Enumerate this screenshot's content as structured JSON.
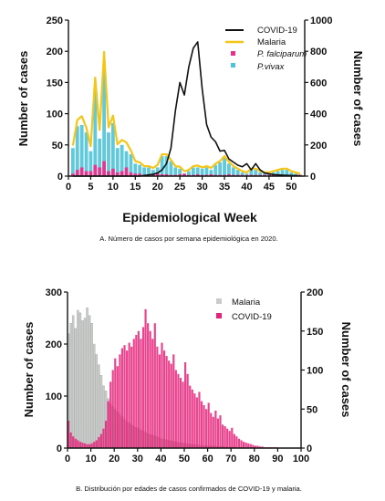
{
  "chart_data": [
    {
      "type": "bar",
      "caption": "A. Número de casos por semana epidemiológica en 2020.",
      "xlabel": "Epidemiological Week",
      "ylabel": "Number of cases",
      "ylabel_right": "Number of cases",
      "xlim": [
        0,
        53
      ],
      "ylim": [
        0,
        250
      ],
      "ylim_right": [
        0,
        1000
      ],
      "xticks": [
        0,
        5,
        10,
        15,
        20,
        25,
        30,
        35,
        40,
        45,
        50
      ],
      "yticks": [
        0,
        50,
        100,
        150,
        200,
        250
      ],
      "yticks_right": [
        0,
        200,
        400,
        600,
        800,
        1000
      ],
      "legend_position": "top-right",
      "weeks": [
        1,
        2,
        3,
        4,
        5,
        6,
        7,
        8,
        9,
        10,
        11,
        12,
        13,
        14,
        15,
        16,
        17,
        18,
        19,
        20,
        21,
        22,
        23,
        24,
        25,
        26,
        27,
        28,
        29,
        30,
        31,
        32,
        33,
        34,
        35,
        36,
        37,
        38,
        39,
        40,
        41,
        42,
        43,
        44,
        45,
        46,
        47,
        48,
        49,
        50,
        51,
        52
      ],
      "series": [
        {
          "name": "P. falciparum",
          "axis": "left",
          "color": "#e8318a",
          "values": [
            4,
            10,
            14,
            8,
            8,
            18,
            14,
            24,
            8,
            12,
            6,
            8,
            14,
            6,
            4,
            4,
            2,
            2,
            3,
            4,
            3,
            3,
            2,
            2,
            3,
            4,
            2,
            2,
            3,
            2,
            2,
            3,
            2,
            2,
            2,
            3,
            2,
            2,
            2,
            2,
            2,
            2,
            2,
            2,
            2,
            2,
            2,
            2,
            2,
            2,
            2,
            2
          ]
        },
        {
          "name": "P.vivax",
          "axis": "left",
          "color": "#4fc3d8",
          "values": [
            45,
            80,
            82,
            70,
            40,
            140,
            60,
            175,
            70,
            85,
            45,
            50,
            40,
            35,
            20,
            18,
            14,
            14,
            10,
            14,
            32,
            32,
            24,
            14,
            12,
            4,
            8,
            14,
            14,
            12,
            14,
            10,
            18,
            22,
            30,
            20,
            14,
            10,
            6,
            4,
            10,
            10,
            6,
            4,
            4,
            6,
            8,
            10,
            10,
            6,
            4,
            2
          ]
        },
        {
          "name": "Malaria",
          "axis": "left",
          "color": "#f5c518",
          "values": [
            49,
            90,
            96,
            78,
            48,
            158,
            74,
            199,
            78,
            97,
            51,
            58,
            54,
            41,
            24,
            22,
            16,
            16,
            13,
            18,
            35,
            35,
            26,
            16,
            15,
            8,
            10,
            16,
            17,
            14,
            16,
            13,
            20,
            24,
            32,
            23,
            16,
            12,
            8,
            6,
            12,
            12,
            8,
            6,
            6,
            8,
            10,
            12,
            12,
            8,
            6,
            4
          ]
        },
        {
          "name": "COVID-19",
          "axis": "right",
          "color": "#111111",
          "weeks": [
            1,
            16,
            17,
            18,
            19,
            20,
            21,
            22,
            23,
            24,
            25,
            26,
            27,
            28,
            29,
            30,
            31,
            32,
            33,
            34,
            35,
            36,
            37,
            38,
            39,
            40,
            41,
            42,
            43,
            44,
            45,
            46,
            47,
            48,
            49,
            50,
            51,
            52
          ],
          "values": [
            0,
            0,
            4,
            8,
            12,
            20,
            40,
            80,
            180,
            420,
            600,
            520,
            700,
            820,
            860,
            560,
            330,
            250,
            220,
            160,
            165,
            110,
            90,
            70,
            60,
            80,
            40,
            80,
            40,
            20,
            15,
            10,
            8,
            6,
            5,
            4,
            3,
            2
          ]
        }
      ]
    },
    {
      "type": "bar",
      "caption": "B. Distribución por edades de casos confirmados de COVID-19 y malaria.",
      "xlabel": "",
      "ylabel": "Number of cases",
      "ylabel_right": "Number of cases",
      "xlim": [
        0,
        100
      ],
      "ylim": [
        0,
        300
      ],
      "ylim_right": [
        0,
        200
      ],
      "xticks": [
        0,
        10,
        20,
        30,
        40,
        50,
        60,
        70,
        80,
        90,
        100
      ],
      "yticks": [
        0,
        100,
        200,
        300
      ],
      "yticks_right": [
        0,
        50,
        100,
        150,
        200
      ],
      "legend_position": "top-center",
      "series": [
        {
          "name": "Malaria",
          "axis": "left",
          "color": "#c9ccca",
          "values": [
            220,
            240,
            255,
            230,
            265,
            260,
            245,
            250,
            270,
            255,
            240,
            200,
            180,
            160,
            140,
            120,
            110,
            95,
            85,
            80,
            75,
            70,
            65,
            60,
            55,
            50,
            48,
            45,
            42,
            40,
            38,
            35,
            33,
            30,
            28,
            26,
            25,
            24,
            22,
            20,
            18,
            17,
            16,
            15,
            14,
            13,
            12,
            11,
            10,
            10,
            9,
            8,
            8,
            7,
            7,
            6,
            6,
            5,
            5,
            5,
            4,
            4,
            4,
            3,
            3,
            3,
            3,
            2,
            2,
            2,
            2,
            2,
            1,
            1,
            1,
            1,
            1,
            1,
            1,
            1,
            0,
            0,
            0,
            0,
            0,
            0,
            0,
            0,
            0,
            0,
            0,
            0,
            0,
            0,
            0,
            0,
            0,
            0,
            0,
            0
          ]
        },
        {
          "name": "COVID-19",
          "axis": "right",
          "color": "#e8227a",
          "values": [
            35,
            20,
            15,
            12,
            10,
            8,
            7,
            6,
            5,
            5,
            6,
            8,
            10,
            14,
            18,
            25,
            35,
            60,
            85,
            100,
            115,
            105,
            120,
            128,
            132,
            125,
            135,
            130,
            140,
            145,
            150,
            140,
            155,
            178,
            160,
            150,
            140,
            160,
            130,
            120,
            135,
            125,
            118,
            112,
            108,
            120,
            100,
            95,
            90,
            85,
            110,
            95,
            80,
            75,
            70,
            65,
            72,
            60,
            55,
            50,
            58,
            45,
            40,
            48,
            38,
            42,
            30,
            28,
            25,
            22,
            26,
            18,
            15,
            12,
            10,
            8,
            7,
            6,
            5,
            4,
            3,
            3,
            2,
            2,
            1,
            1,
            1,
            1,
            1,
            1,
            0,
            0,
            0,
            0,
            0,
            0,
            0,
            0,
            0,
            0
          ]
        }
      ]
    }
  ]
}
